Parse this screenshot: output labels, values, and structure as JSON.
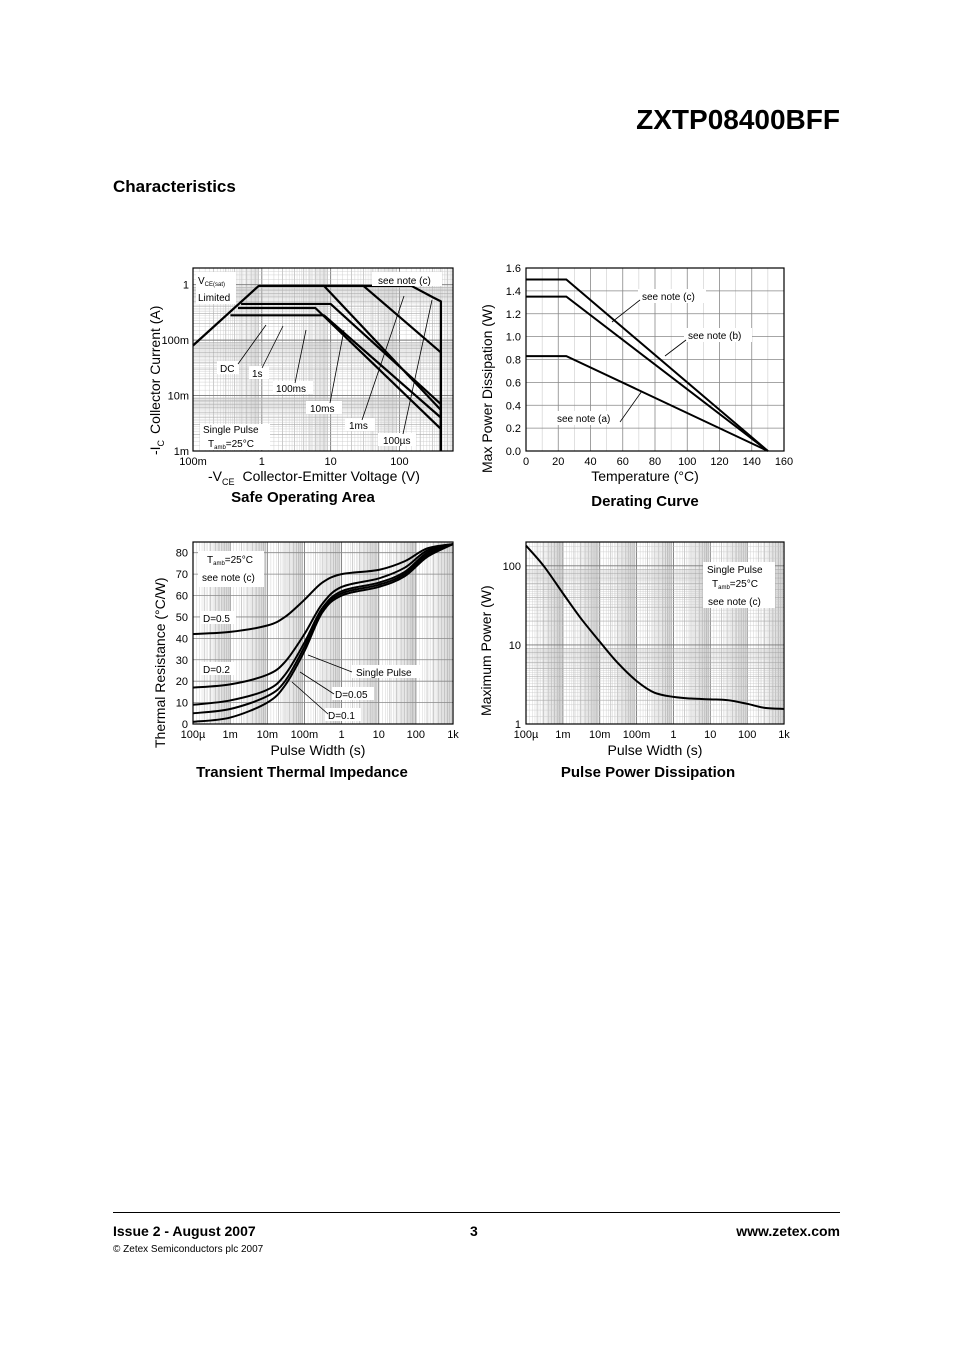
{
  "header": {
    "part_number": "ZXTP08400BFF",
    "section_title": "Characteristics"
  },
  "footer": {
    "issue": "Issue 2 - August 2007",
    "copyright": "© Zetex Semiconductors plc 2007",
    "page": "3",
    "website": "www.zetex.com"
  },
  "chart_data": [
    {
      "id": "soa",
      "type": "line",
      "title": "Safe Operating Area",
      "xlabel_prefix": "-V",
      "xlabel_sub": "CE",
      "xlabel": "Collector-Emitter Voltage (V)",
      "ylabel_prefix": "-I",
      "ylabel_sub": "C",
      "ylabel": "Collector Current (A)",
      "x_scale": "log",
      "y_scale": "log",
      "xlim": [
        0.1,
        600
      ],
      "ylim": [
        0.001,
        2
      ],
      "x_ticks": [
        {
          "v": 0.1,
          "label": "100m"
        },
        {
          "v": 1,
          "label": "1"
        },
        {
          "v": 10,
          "label": "10"
        },
        {
          "v": 100,
          "label": "100"
        }
      ],
      "y_ticks": [
        {
          "v": 0.001,
          "label": "1m"
        },
        {
          "v": 0.01,
          "label": "10m"
        },
        {
          "v": 0.1,
          "label": "100m"
        },
        {
          "v": 1,
          "label": "1"
        }
      ],
      "grid": true,
      "series": [
        {
          "name": "DC",
          "x": [
            0.1,
            0.9,
            8,
            400,
            400
          ],
          "y": [
            0.08,
            0.95,
            0.95,
            0.0055,
            0.001
          ]
        },
        {
          "name": "1s",
          "x": [
            0.45,
            6,
            400,
            400
          ],
          "y": [
            0.38,
            0.38,
            0.0025,
            0.001
          ]
        },
        {
          "name": "100ms",
          "x": [
            0.35,
            8,
            400,
            400
          ],
          "y": [
            0.28,
            0.28,
            0.004,
            0.001
          ]
        },
        {
          "name": "10ms",
          "x": [
            0.5,
            10,
            400,
            400
          ],
          "y": [
            0.45,
            0.45,
            0.007,
            0.001
          ]
        },
        {
          "name": "1ms",
          "x": [
            0.9,
            30,
            400,
            400
          ],
          "y": [
            0.95,
            0.95,
            0.06,
            0.001
          ]
        },
        {
          "name": "100µs",
          "x": [
            2,
            150,
            300,
            400,
            400
          ],
          "y": [
            0.95,
            0.95,
            0.6,
            0.5,
            0.001
          ]
        }
      ],
      "annotations": {
        "vce_limited_prefix": "V",
        "vce_limited_sub": "CE(sat)",
        "limited": "Limited",
        "see_note": "see note (c)",
        "labels": [
          "DC",
          "1s",
          "100ms",
          "10ms",
          "1ms",
          "100µs"
        ],
        "single_pulse": "Single Pulse",
        "tamb_prefix": "T",
        "tamb_sub": "amb",
        "tamb_value": "=25°C"
      }
    },
    {
      "id": "derating",
      "type": "line",
      "title": "Derating Curve",
      "xlabel": "Temperature (°C)",
      "ylabel": "Max Power Dissipation (W)",
      "xlim": [
        0,
        160
      ],
      "ylim": [
        0,
        1.6
      ],
      "x_ticks": [
        0,
        20,
        40,
        60,
        80,
        100,
        120,
        140,
        160
      ],
      "y_ticks": [
        "0.0",
        "0.2",
        "0.4",
        "0.6",
        "0.8",
        "1.0",
        "1.2",
        "1.4",
        "1.6"
      ],
      "grid": true,
      "series": [
        {
          "name": "see note (c)",
          "x": [
            0,
            25,
            150
          ],
          "y": [
            1.5,
            1.5,
            0
          ]
        },
        {
          "name": "see note (b)",
          "x": [
            0,
            25,
            150
          ],
          "y": [
            1.35,
            1.35,
            0
          ]
        },
        {
          "name": "see note (a)",
          "x": [
            0,
            25,
            150
          ],
          "y": [
            0.83,
            0.83,
            0
          ]
        }
      ]
    },
    {
      "id": "transient",
      "type": "line",
      "title": "Transient Thermal Impedance",
      "xlabel": "Pulse Width (s)",
      "ylabel": "Thermal Resistance (°C/W)",
      "x_scale": "log",
      "xlim": [
        0.0001,
        1000
      ],
      "ylim": [
        0,
        85
      ],
      "x_ticks": [
        {
          "v": 0.0001,
          "label": "100µ"
        },
        {
          "v": 0.001,
          "label": "1m"
        },
        {
          "v": 0.01,
          "label": "10m"
        },
        {
          "v": 0.1,
          "label": "100m"
        },
        {
          "v": 1,
          "label": "1"
        },
        {
          "v": 10,
          "label": "10"
        },
        {
          "v": 100,
          "label": "100"
        },
        {
          "v": 1000,
          "label": "1k"
        }
      ],
      "y_ticks": [
        0,
        10,
        20,
        30,
        40,
        50,
        60,
        70,
        80
      ],
      "grid": true,
      "series": [
        {
          "name": "D=0.5",
          "x": [
            0.0001,
            0.001,
            0.01,
            0.03,
            0.1,
            0.3,
            1,
            10,
            50,
            200,
            1000
          ],
          "y": [
            42,
            43,
            46,
            50,
            58,
            66,
            70,
            72,
            76,
            82,
            84
          ]
        },
        {
          "name": "D=0.2",
          "x": [
            0.0001,
            0.001,
            0.01,
            0.03,
            0.1,
            0.3,
            1,
            10,
            50,
            200,
            1000
          ],
          "y": [
            17,
            18.5,
            23,
            29,
            42,
            56,
            64,
            68,
            73,
            81,
            84
          ]
        },
        {
          "name": "D=0.1",
          "x": [
            0.0001,
            0.001,
            0.01,
            0.03,
            0.1,
            0.3,
            1,
            10,
            50,
            200,
            1000
          ],
          "y": [
            9,
            11,
            16,
            23,
            38,
            54,
            62,
            66,
            71,
            80,
            84
          ]
        },
        {
          "name": "D=0.05",
          "x": [
            0.0001,
            0.001,
            0.01,
            0.03,
            0.1,
            0.3,
            1,
            10,
            50,
            200,
            1000
          ],
          "y": [
            5,
            7,
            13,
            20,
            36,
            53,
            61,
            65,
            70,
            79,
            84
          ]
        },
        {
          "name": "Single Pulse",
          "x": [
            0.0001,
            0.001,
            0.01,
            0.03,
            0.1,
            0.3,
            1,
            10,
            50,
            200,
            1000
          ],
          "y": [
            1,
            3,
            10,
            18,
            34,
            52,
            60,
            64,
            69,
            78,
            84
          ]
        }
      ],
      "annotations": {
        "tamb_prefix": "T",
        "tamb_sub": "amb",
        "tamb_value": "=25°C",
        "see_note": "see note (c)",
        "labels": [
          "D=0.5",
          "D=0.2",
          "Single Pulse",
          "D=0.05",
          "D=0.1"
        ]
      }
    },
    {
      "id": "pulse_power",
      "type": "line",
      "title": "Pulse Power Dissipation",
      "xlabel": "Pulse Width (s)",
      "ylabel": "Maximum Power (W)",
      "x_scale": "log",
      "y_scale": "log",
      "xlim": [
        0.0001,
        1000
      ],
      "ylim": [
        1,
        200
      ],
      "x_ticks": [
        {
          "v": 0.0001,
          "label": "100µ"
        },
        {
          "v": 0.001,
          "label": "1m"
        },
        {
          "v": 0.01,
          "label": "10m"
        },
        {
          "v": 0.1,
          "label": "100m"
        },
        {
          "v": 1,
          "label": "1"
        },
        {
          "v": 10,
          "label": "10"
        },
        {
          "v": 100,
          "label": "100"
        },
        {
          "v": 1000,
          "label": "1k"
        }
      ],
      "y_ticks": [
        {
          "v": 1,
          "label": "1"
        },
        {
          "v": 10,
          "label": "10"
        },
        {
          "v": 100,
          "label": "100"
        }
      ],
      "grid": true,
      "series": [
        {
          "name": "Single Pulse",
          "x": [
            0.0001,
            0.0003,
            0.001,
            0.003,
            0.01,
            0.03,
            0.1,
            0.3,
            1,
            3,
            10,
            30,
            100,
            300,
            1000
          ],
          "y": [
            180,
            100,
            45,
            22,
            11,
            6,
            3.5,
            2.5,
            2.2,
            2.1,
            2.05,
            2.0,
            1.8,
            1.6,
            1.55
          ]
        }
      ],
      "annotations": {
        "single_pulse": "Single Pulse",
        "tamb_prefix": "T",
        "tamb_sub": "amb",
        "tamb_value": "=25°C",
        "see_note": "see note (c)"
      }
    }
  ]
}
